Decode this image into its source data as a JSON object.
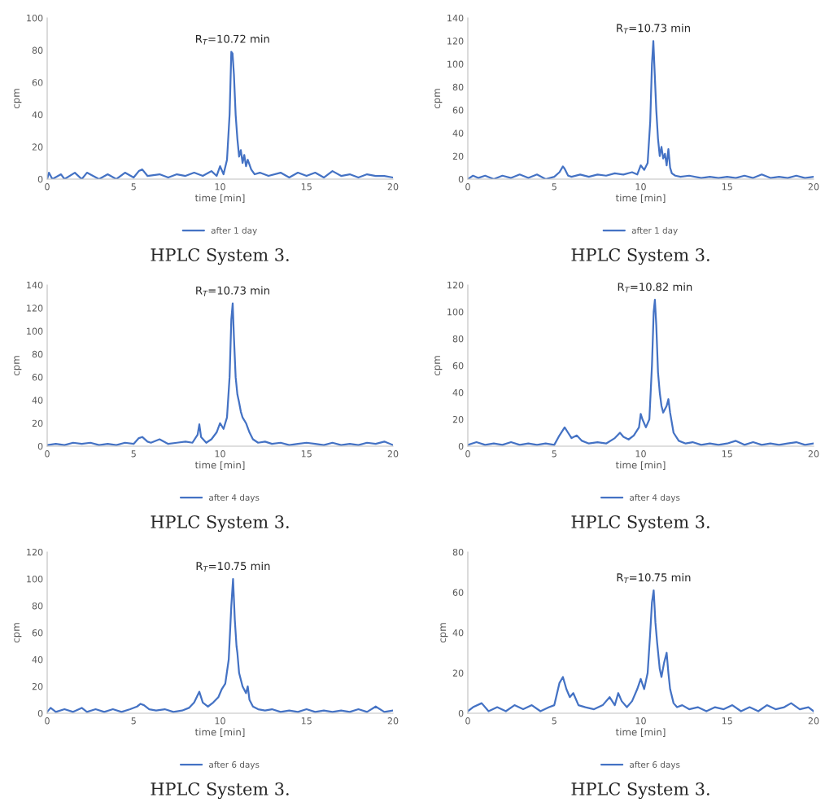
{
  "chart_data": [
    {
      "type": "line",
      "xlabel": "time [min]",
      "ylabel": "cpm",
      "xlim": [
        0,
        20
      ],
      "xticks": [
        0,
        5,
        10,
        15,
        20
      ],
      "ylim": [
        0,
        100
      ],
      "yticks": [
        0,
        20,
        40,
        60,
        80,
        100
      ],
      "grid": false,
      "legend": "bottom",
      "marker": "none",
      "line_style": "solid",
      "annotations": [
        {
          "text": "R$_{T}$=10.72 min",
          "x": 10.72,
          "y": 79
        },
        "HPLC System 3."
      ],
      "series": [
        {
          "name": "after 1 day",
          "color": "#4472c4",
          "x": [
            0,
            0.1,
            0.3,
            0.8,
            1,
            1.6,
            2,
            2.3,
            3,
            3.5,
            4,
            4.5,
            5,
            5.3,
            5.5,
            5.8,
            6.5,
            7,
            7.5,
            8,
            8.5,
            9,
            9.5,
            9.8,
            10,
            10.2,
            10.4,
            10.55,
            10.65,
            10.72,
            10.8,
            10.9,
            11,
            11.1,
            11.2,
            11.3,
            11.4,
            11.5,
            11.6,
            11.8,
            12,
            12.3,
            12.8,
            13.5,
            14,
            14.5,
            15,
            15.5,
            16,
            16.5,
            17,
            17.5,
            18,
            18.5,
            19,
            19.5,
            20
          ],
          "values": [
            0,
            4,
            0,
            3,
            0,
            4,
            0,
            4,
            0,
            3,
            0,
            4,
            1,
            5,
            6,
            2,
            3,
            1,
            3,
            2,
            4,
            2,
            5,
            2,
            8,
            3,
            12,
            40,
            79,
            78,
            65,
            40,
            25,
            14,
            18,
            10,
            15,
            8,
            12,
            6,
            3,
            4,
            2,
            4,
            1,
            4,
            2,
            4,
            1,
            5,
            2,
            3,
            1,
            3,
            2,
            2,
            1
          ]
        }
      ]
    },
    {
      "type": "line",
      "xlabel": "time [min]",
      "ylabel": "cpm",
      "xlim": [
        0,
        20
      ],
      "xticks": [
        0,
        5,
        10,
        15,
        20
      ],
      "ylim": [
        0,
        140
      ],
      "yticks": [
        0,
        20,
        40,
        60,
        80,
        100,
        120,
        140
      ],
      "grid": false,
      "legend": "bottom",
      "marker": "none",
      "line_style": "solid",
      "annotations": [
        {
          "text": "R$_{T}$=10.73 min",
          "x": 10.73,
          "y": 120
        },
        "HPLC System 3."
      ],
      "series": [
        {
          "name": "after 1 day",
          "color": "#4472c4",
          "x": [
            0,
            0.3,
            0.6,
            1,
            1.5,
            2,
            2.5,
            3,
            3.5,
            4,
            4.5,
            5,
            5.3,
            5.5,
            5.6,
            5.8,
            6,
            6.5,
            7,
            7.5,
            8,
            8.5,
            9,
            9.5,
            9.8,
            10,
            10.2,
            10.4,
            10.55,
            10.65,
            10.73,
            10.8,
            10.9,
            11,
            11.1,
            11.2,
            11.3,
            11.4,
            11.5,
            11.6,
            11.7,
            11.8,
            12,
            12.3,
            12.8,
            13.5,
            14,
            14.5,
            15,
            15.5,
            16,
            16.5,
            17,
            17.5,
            18,
            18.5,
            19,
            19.5,
            20
          ],
          "values": [
            0,
            3,
            1,
            3,
            0,
            3,
            1,
            4,
            1,
            4,
            0,
            2,
            6,
            11,
            9,
            3,
            2,
            4,
            2,
            4,
            3,
            5,
            4,
            6,
            4,
            12,
            8,
            14,
            50,
            100,
            120,
            95,
            60,
            35,
            20,
            28,
            18,
            22,
            12,
            26,
            10,
            5,
            3,
            2,
            3,
            1,
            2,
            1,
            2,
            1,
            3,
            1,
            4,
            1,
            2,
            1,
            3,
            1,
            2
          ]
        }
      ]
    },
    {
      "type": "line",
      "xlabel": "time [min]",
      "ylabel": "cpm",
      "xlim": [
        0,
        20
      ],
      "xticks": [
        0,
        5,
        10,
        15,
        20
      ],
      "ylim": [
        0,
        140
      ],
      "yticks": [
        0,
        20,
        40,
        60,
        80,
        100,
        120,
        140
      ],
      "grid": false,
      "legend": "bottom",
      "marker": "none",
      "line_style": "solid",
      "annotations": [
        {
          "text": "R$_{T}$=10.73 min",
          "x": 10.73,
          "y": 124
        },
        "HPLC System 3."
      ],
      "series": [
        {
          "name": "after 4 days",
          "color": "#4472c4",
          "x": [
            0,
            0.5,
            1,
            1.5,
            2,
            2.5,
            3,
            3.5,
            4,
            4.5,
            5,
            5.3,
            5.5,
            5.8,
            6,
            6.5,
            7,
            7.5,
            8,
            8.4,
            8.7,
            8.8,
            8.9,
            9.2,
            9.5,
            9.8,
            10,
            10.2,
            10.4,
            10.55,
            10.65,
            10.73,
            10.8,
            10.9,
            11,
            11.1,
            11.2,
            11.3,
            11.5,
            11.7,
            11.9,
            12.2,
            12.6,
            13,
            13.5,
            14,
            14.5,
            15,
            15.5,
            16,
            16.5,
            17,
            17.5,
            18,
            18.5,
            19,
            19.5,
            20
          ],
          "values": [
            1,
            2,
            1,
            3,
            2,
            3,
            1,
            2,
            1,
            3,
            2,
            7,
            8,
            4,
            3,
            6,
            2,
            3,
            4,
            3,
            10,
            19,
            8,
            3,
            6,
            12,
            20,
            15,
            25,
            60,
            110,
            124,
            95,
            60,
            45,
            38,
            30,
            25,
            20,
            12,
            6,
            3,
            4,
            2,
            3,
            1,
            2,
            3,
            2,
            1,
            3,
            1,
            2,
            1,
            3,
            2,
            4,
            1
          ]
        }
      ]
    },
    {
      "type": "line",
      "xlabel": "time [min]",
      "ylabel": "cpm",
      "xlim": [
        0,
        20
      ],
      "xticks": [
        0,
        5,
        10,
        15,
        20
      ],
      "ylim": [
        0,
        120
      ],
      "yticks": [
        0,
        20,
        40,
        60,
        80,
        100,
        120
      ],
      "grid": false,
      "legend": "bottom",
      "marker": "none",
      "line_style": "solid",
      "annotations": [
        {
          "text": "R$_{T}$=10.82 min",
          "x": 10.82,
          "y": 109
        },
        "HPLC System 3."
      ],
      "series": [
        {
          "name": "after 4 days",
          "color": "#4472c4",
          "x": [
            0,
            0.5,
            1,
            1.5,
            2,
            2.5,
            3,
            3.5,
            4,
            4.5,
            5,
            5.3,
            5.6,
            5.8,
            6,
            6.3,
            6.6,
            7,
            7.5,
            8,
            8.5,
            8.8,
            9,
            9.3,
            9.6,
            9.9,
            10,
            10.1,
            10.3,
            10.5,
            10.65,
            10.75,
            10.82,
            10.9,
            11,
            11.1,
            11.2,
            11.3,
            11.5,
            11.6,
            11.7,
            11.9,
            12.2,
            12.6,
            13,
            13.5,
            14,
            14.5,
            15,
            15.5,
            16,
            16.5,
            17,
            17.5,
            18,
            18.5,
            19,
            19.5,
            20
          ],
          "values": [
            1,
            3,
            1,
            2,
            1,
            3,
            1,
            2,
            1,
            2,
            1,
            8,
            14,
            10,
            6,
            8,
            4,
            2,
            3,
            2,
            6,
            10,
            7,
            5,
            8,
            14,
            24,
            20,
            14,
            20,
            60,
            100,
            109,
            90,
            55,
            40,
            30,
            25,
            30,
            35,
            25,
            10,
            4,
            2,
            3,
            1,
            2,
            1,
            2,
            4,
            1,
            3,
            1,
            2,
            1,
            2,
            3,
            1,
            2
          ]
        }
      ]
    },
    {
      "type": "line",
      "xlabel": "time [min]",
      "ylabel": "cpm",
      "xlim": [
        0,
        20
      ],
      "xticks": [
        0,
        5,
        10,
        15,
        20
      ],
      "ylim": [
        0,
        120
      ],
      "yticks": [
        0,
        20,
        40,
        60,
        80,
        100,
        120
      ],
      "grid": false,
      "legend": "bottom",
      "marker": "none",
      "line_style": "solid",
      "annotations": [
        {
          "text": "R$_{T}$=10.75 min",
          "x": 10.75,
          "y": 100
        },
        "HPLC System 3."
      ],
      "series": [
        {
          "name": "after 6 days",
          "color": "#4472c4",
          "x": [
            0,
            0.2,
            0.5,
            1,
            1.5,
            2,
            2.3,
            2.8,
            3.3,
            3.8,
            4.3,
            4.8,
            5.2,
            5.4,
            5.6,
            5.9,
            6.3,
            6.8,
            7.3,
            7.8,
            8.2,
            8.5,
            8.8,
            9,
            9.3,
            9.6,
            9.9,
            10.1,
            10.3,
            10.5,
            10.65,
            10.75,
            10.85,
            10.95,
            11,
            11.1,
            11.2,
            11.3,
            11.5,
            11.6,
            11.7,
            11.9,
            12.2,
            12.6,
            13,
            13.5,
            14,
            14.5,
            15,
            15.5,
            16,
            16.5,
            17,
            17.5,
            18,
            18.5,
            19,
            19.5,
            20
          ],
          "values": [
            1,
            4,
            1,
            3,
            1,
            4,
            1,
            3,
            1,
            3,
            1,
            3,
            5,
            7,
            6,
            3,
            2,
            3,
            1,
            2,
            4,
            8,
            16,
            8,
            5,
            8,
            12,
            18,
            22,
            40,
            80,
            100,
            70,
            50,
            45,
            30,
            25,
            20,
            15,
            20,
            10,
            5,
            3,
            2,
            3,
            1,
            2,
            1,
            3,
            1,
            2,
            1,
            2,
            1,
            3,
            1,
            5,
            1,
            2
          ]
        }
      ]
    },
    {
      "type": "line",
      "xlabel": "time [min]",
      "ylabel": "cpm",
      "xlim": [
        0,
        20
      ],
      "xticks": [
        0,
        5,
        10,
        15,
        20
      ],
      "ylim": [
        0,
        80
      ],
      "yticks": [
        0,
        20,
        40,
        60,
        80
      ],
      "grid": false,
      "legend": "bottom",
      "marker": "none",
      "line_style": "solid",
      "annotations": [
        {
          "text": "R$_{T}$=10.75 min",
          "x": 10.75,
          "y": 61
        },
        "HPLC System 3."
      ],
      "series": [
        {
          "name": "after 6 days",
          "color": "#4472c4",
          "x": [
            0,
            0.3,
            0.8,
            1.2,
            1.7,
            2.2,
            2.7,
            3.2,
            3.7,
            4.2,
            4.7,
            5,
            5.3,
            5.5,
            5.7,
            5.9,
            6.1,
            6.4,
            6.8,
            7.3,
            7.8,
            8.2,
            8.5,
            8.7,
            8.9,
            9.2,
            9.5,
            9.8,
            10,
            10.2,
            10.4,
            10.55,
            10.65,
            10.75,
            10.85,
            10.95,
            11.1,
            11.2,
            11.35,
            11.5,
            11.6,
            11.7,
            11.9,
            12.1,
            12.4,
            12.8,
            13.3,
            13.8,
            14.3,
            14.8,
            15.3,
            15.8,
            16.3,
            16.8,
            17.3,
            17.8,
            18.3,
            18.7,
            19.2,
            19.7,
            20
          ],
          "values": [
            1,
            3,
            5,
            1,
            3,
            1,
            4,
            2,
            4,
            1,
            3,
            4,
            15,
            18,
            12,
            8,
            10,
            4,
            3,
            2,
            4,
            8,
            4,
            10,
            6,
            3,
            6,
            12,
            17,
            12,
            20,
            40,
            55,
            61,
            45,
            35,
            22,
            18,
            25,
            30,
            20,
            12,
            5,
            3,
            4,
            2,
            3,
            1,
            3,
            2,
            4,
            1,
            3,
            1,
            4,
            2,
            3,
            5,
            2,
            3,
            1
          ]
        }
      ]
    }
  ]
}
